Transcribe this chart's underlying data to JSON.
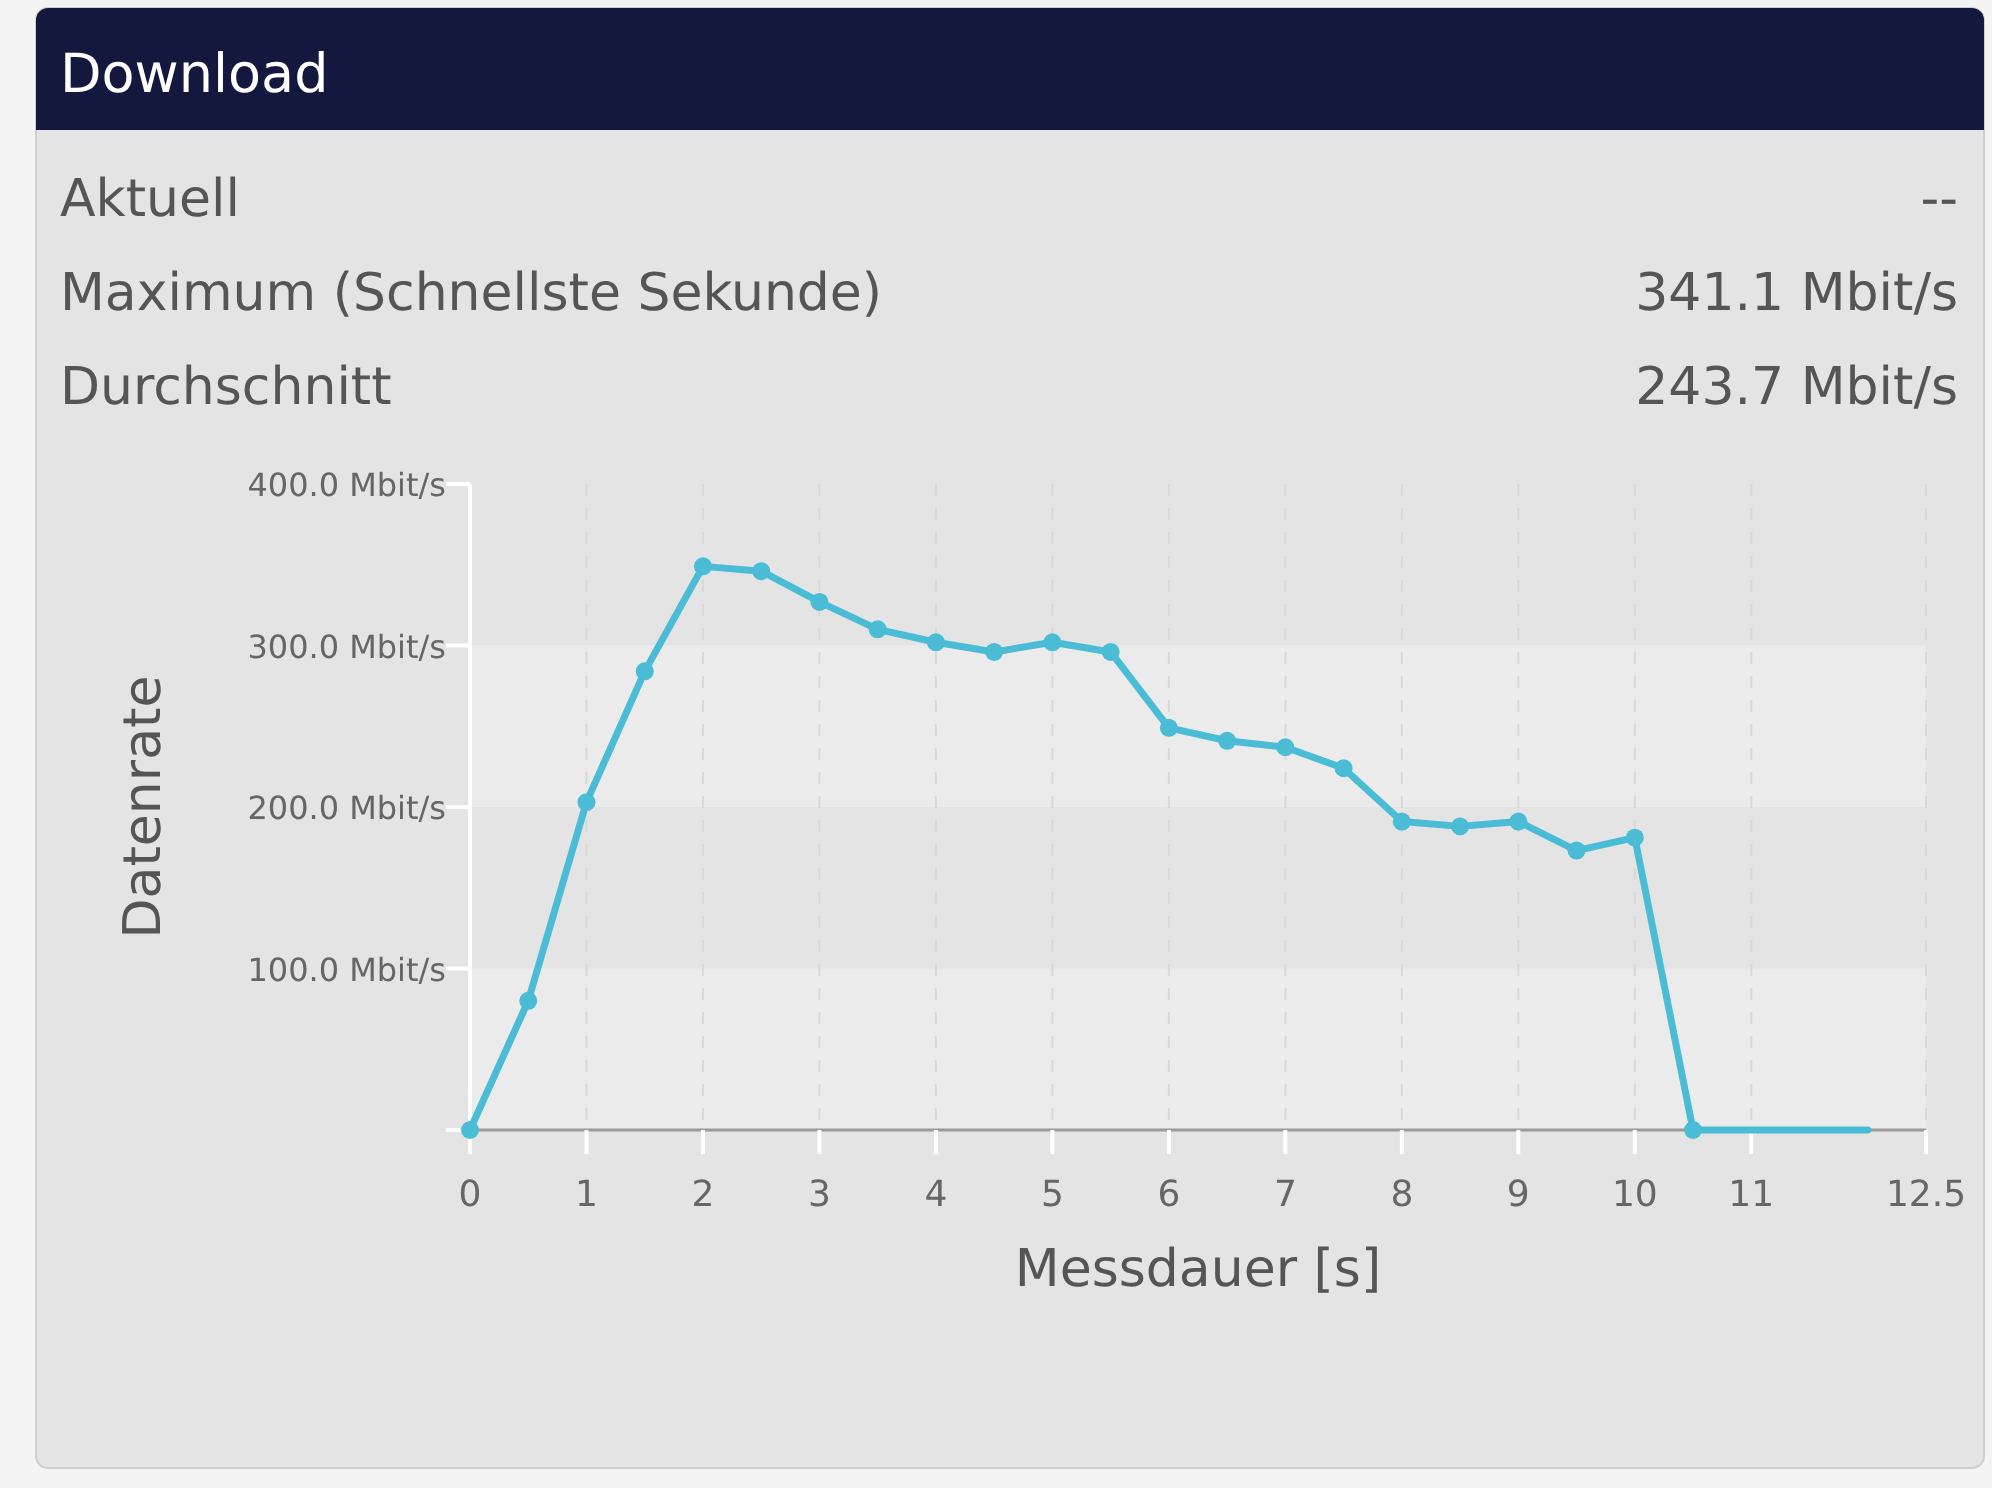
{
  "chart_data": {
    "type": "line",
    "title": "Download",
    "annotations": [
      "Aktuell",
      "--",
      "Maximum (Schnellste Sekunde)",
      "341.1 Mbit/s",
      "Durchschnitt",
      "243.7 Mbit/s"
    ],
    "xlabel": "Messdauer [s]",
    "ylabel": "Datenrate",
    "x": [
      0,
      0.5,
      1,
      1.5,
      2,
      2.5,
      3,
      3.5,
      4,
      4.5,
      5,
      5.5,
      6,
      6.5,
      7,
      7.5,
      8,
      8.5,
      9,
      9.5,
      10,
      10.5,
      12
    ],
    "series": [
      {
        "color": "#4bbcd6",
        "values": [
          0,
          80,
          203,
          284,
          349,
          346,
          327,
          310,
          302,
          296,
          302,
          296,
          249,
          241,
          237,
          224,
          191,
          188,
          191,
          173,
          181,
          0,
          0
        ]
      }
    ],
    "xlim": [
      0,
      12.5
    ],
    "xticks": [
      0,
      1,
      2,
      3,
      4,
      5,
      6,
      7,
      8,
      9,
      10,
      11,
      12.5
    ],
    "ylim": [
      0,
      400
    ],
    "yticks": [
      {
        "value": 0,
        "label": null
      },
      {
        "value": 100,
        "label": "100.0 Mbit/s"
      },
      {
        "value": 200,
        "label": "200.0 Mbit/s"
      },
      {
        "value": 300,
        "label": "300.0 Mbit/s"
      },
      {
        "value": 400,
        "label": "400.0 Mbit/s"
      }
    ],
    "grid": true,
    "marker": "circle",
    "line_style": "solid"
  }
}
